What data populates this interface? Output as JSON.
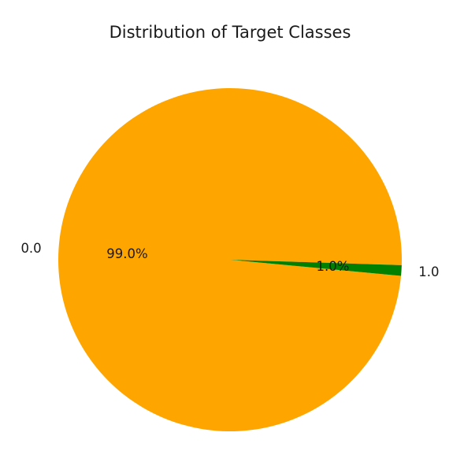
{
  "chart_data": {
    "type": "pie",
    "title": "Distribution of Target Classes",
    "slices": [
      {
        "label": "0.0",
        "pct_label": "99.0%",
        "value": 99.0,
        "color": "#ffa500"
      },
      {
        "label": "1.0",
        "pct_label": "1.0%",
        "value": 1.0,
        "color": "#008000"
      }
    ]
  }
}
